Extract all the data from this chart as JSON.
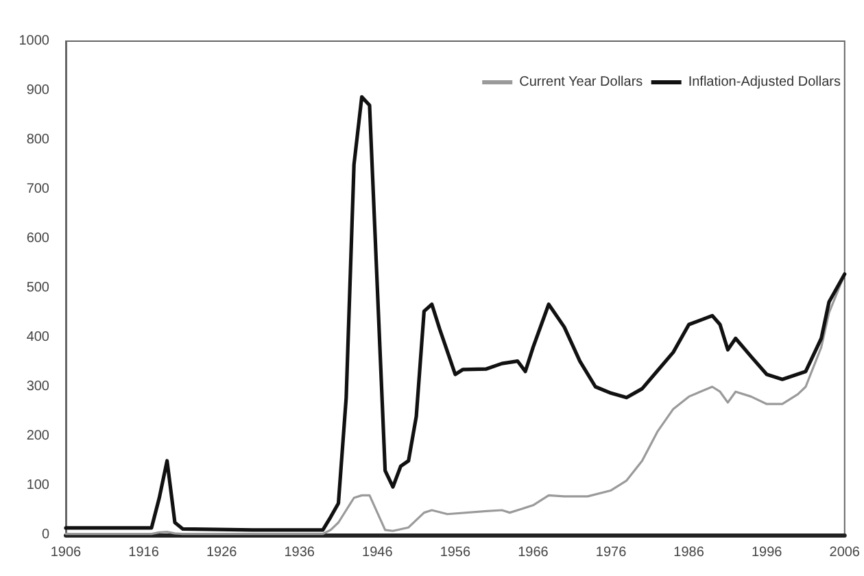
{
  "chart_data": {
    "type": "line",
    "xlim": [
      1906,
      2006
    ],
    "xticks": [
      1906,
      1916,
      1926,
      1936,
      1946,
      1956,
      1966,
      1976,
      1986,
      1996,
      2006
    ],
    "ylim": [
      0,
      1000
    ],
    "yticks": [
      0,
      100,
      200,
      300,
      400,
      500,
      600,
      700,
      800,
      900,
      1000
    ],
    "grid": false,
    "legend": "top right",
    "marker": "none",
    "line_style": "solid",
    "series": [
      {
        "name": "Current Year Dollars",
        "color": "#9a9a9a",
        "x": [
          1906,
          1917,
          1918,
          1919,
          1920,
          1921,
          1939,
          1940,
          1941,
          1942,
          1943,
          1944,
          1945,
          1946,
          1947,
          1948,
          1950,
          1951,
          1952,
          1953,
          1955,
          1960,
          1962,
          1963,
          1966,
          1968,
          1970,
          1973,
          1976,
          1978,
          1980,
          1982,
          1984,
          1986,
          1989,
          1990,
          1991,
          1992,
          1994,
          1996,
          1998,
          2000,
          2001,
          2003,
          2004,
          2006
        ],
        "values": [
          2,
          2,
          5,
          6,
          3,
          2,
          2,
          10,
          25,
          50,
          75,
          80,
          80,
          45,
          10,
          8,
          15,
          30,
          45,
          50,
          42,
          48,
          50,
          45,
          60,
          80,
          78,
          78,
          90,
          110,
          150,
          210,
          255,
          280,
          300,
          290,
          268,
          290,
          280,
          265,
          265,
          285,
          300,
          380,
          450,
          528
        ]
      },
      {
        "name": "Inflation-Adjusted Dollars",
        "color": "#111111",
        "x": [
          1906,
          1917,
          1918,
          1919,
          1920,
          1921,
          1930,
          1939,
          1940,
          1941,
          1942,
          1943,
          1944,
          1945,
          1946,
          1947,
          1948,
          1949,
          1950,
          1951,
          1952,
          1953,
          1954,
          1956,
          1957,
          1960,
          1962,
          1964,
          1965,
          1966,
          1968,
          1970,
          1972,
          1974,
          1976,
          1978,
          1980,
          1982,
          1984,
          1986,
          1989,
          1990,
          1991,
          1992,
          1994,
          1996,
          1998,
          2001,
          2003,
          2004,
          2006
        ],
        "values": [
          14,
          14,
          75,
          150,
          25,
          12,
          10,
          10,
          36,
          64,
          278,
          750,
          887,
          870,
          500,
          130,
          97,
          139,
          150,
          240,
          453,
          467,
          417,
          325,
          335,
          336,
          347,
          352,
          331,
          380,
          467,
          421,
          352,
          300,
          287,
          278,
          296,
          333,
          370,
          426,
          444,
          426,
          375,
          398,
          361,
          325,
          315,
          331,
          398,
          472,
          528
        ]
      }
    ]
  }
}
